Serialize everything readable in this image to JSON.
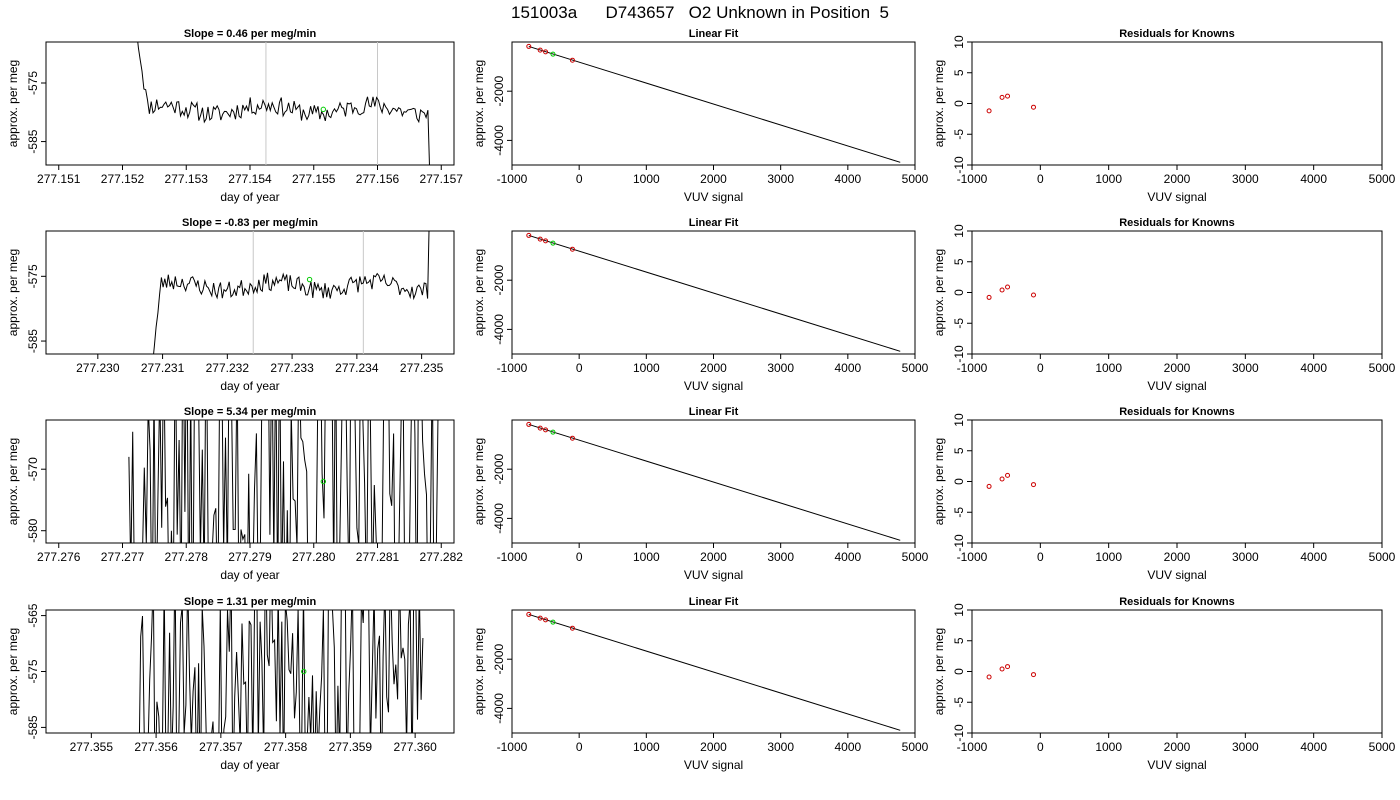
{
  "page": {
    "title": "151003a      D743657   O2 Unknown in Position  5"
  },
  "colors": {
    "trace": "#000000",
    "known_point": "#cc0000",
    "unknown_point": "#00cc00",
    "vline": "#c8c8c8",
    "fit_line": "#000000"
  },
  "chart_data": [
    {
      "type": "line",
      "row": 1,
      "panel": "timeseries",
      "title": "Slope =  0.46  per meg/min",
      "xlabel": "day of year",
      "ylabel": "approx. per meg",
      "xlim": [
        277.1508,
        277.1572
      ],
      "ylim": [
        -589,
        -568
      ],
      "xticks": [
        277.151,
        277.152,
        277.153,
        277.154,
        277.155,
        277.156,
        277.157
      ],
      "xtick_labels": [
        "277.151",
        "277.152",
        "277.153",
        "277.154",
        "277.155",
        "277.156",
        "277.157"
      ],
      "yticks": [
        -585,
        -575
      ],
      "ytick_labels": [
        "-585",
        "-575"
      ],
      "vlines": [
        277.15425,
        277.156
      ],
      "unknown_point": [
        277.15515,
        -579.5
      ],
      "trace": {
        "mode": "noisy",
        "x_start": 277.15222,
        "x_end": 277.15682,
        "level": -579.5,
        "noise": 1.6,
        "start_y": -566,
        "end_y": -591,
        "seed": 11
      }
    },
    {
      "type": "scatter",
      "row": 1,
      "panel": "fit",
      "title": "Linear Fit",
      "xlabel": "VUV signal",
      "ylabel": "approx. per meg",
      "xlim": [
        -1000,
        5000
      ],
      "ylim": [
        -5000,
        0
      ],
      "xticks": [
        -1000,
        0,
        1000,
        2000,
        3000,
        4000,
        5000
      ],
      "xtick_labels": [
        "-1000",
        "0",
        "1000",
        "2000",
        "3000",
        "4000",
        "5000"
      ],
      "yticks": [
        -4000,
        -2000
      ],
      "ytick_labels": [
        "-4000",
        "-2000"
      ],
      "fit_line": [
        [
          -750,
          -180
        ],
        [
          4780,
          -4890
        ]
      ],
      "knowns": [
        [
          -750,
          -180
        ],
        [
          -580,
          -330
        ],
        [
          -500,
          -400
        ],
        [
          -100,
          -740
        ]
      ],
      "unknown": [
        [
          -390,
          -495
        ]
      ]
    },
    {
      "type": "scatter",
      "row": 1,
      "panel": "residuals",
      "title": "Residuals for Knowns",
      "xlabel": "VUV signal",
      "ylabel": "approx. per meg",
      "xlim": [
        -1000,
        5000
      ],
      "ylim": [
        -10,
        10
      ],
      "xticks": [
        -1000,
        0,
        1000,
        2000,
        3000,
        4000,
        5000
      ],
      "xtick_labels": [
        "-1000",
        "0",
        "1000",
        "2000",
        "3000",
        "4000",
        "5000"
      ],
      "yticks": [
        -10,
        -5,
        0,
        5,
        10
      ],
      "ytick_labels": [
        "-10",
        "-5",
        "0",
        "5",
        "10"
      ],
      "points": [
        [
          -750,
          -1.2
        ],
        [
          -560,
          1.0
        ],
        [
          -480,
          1.2
        ],
        [
          -100,
          -0.6
        ]
      ]
    },
    {
      "type": "line",
      "row": 2,
      "panel": "timeseries",
      "title": "Slope =  -0.83  per meg/min",
      "xlabel": "day of year",
      "ylabel": "approx. per meg",
      "xlim": [
        277.2292,
        277.2355
      ],
      "ylim": [
        -587,
        -568
      ],
      "xticks": [
        277.23,
        277.231,
        277.232,
        277.233,
        277.234,
        277.235
      ],
      "xtick_labels": [
        "277.230",
        "277.231",
        "277.232",
        "277.233",
        "277.234",
        "277.235"
      ],
      "yticks": [
        -585,
        -575
      ],
      "ytick_labels": [
        "-585",
        "-575"
      ],
      "vlines": [
        277.2324,
        277.2341
      ],
      "unknown_point": [
        277.23327,
        -575.5
      ],
      "trace": {
        "mode": "noisy",
        "x_start": 277.23082,
        "x_end": 277.23512,
        "level": -576.5,
        "noise": 1.4,
        "start_y": -590,
        "end_y": -565,
        "seed": 23
      }
    },
    {
      "type": "scatter",
      "row": 2,
      "panel": "fit",
      "title": "Linear Fit",
      "xlabel": "VUV signal",
      "ylabel": "approx. per meg",
      "xlim": [
        -1000,
        5000
      ],
      "ylim": [
        -5000,
        0
      ],
      "xticks": [
        -1000,
        0,
        1000,
        2000,
        3000,
        4000,
        5000
      ],
      "xtick_labels": [
        "-1000",
        "0",
        "1000",
        "2000",
        "3000",
        "4000",
        "5000"
      ],
      "yticks": [
        -4000,
        -2000
      ],
      "ytick_labels": [
        "-4000",
        "-2000"
      ],
      "fit_line": [
        [
          -750,
          -180
        ],
        [
          4780,
          -4890
        ]
      ],
      "knowns": [
        [
          -750,
          -180
        ],
        [
          -580,
          -330
        ],
        [
          -500,
          -400
        ],
        [
          -100,
          -740
        ]
      ],
      "unknown": [
        [
          -390,
          -495
        ]
      ]
    },
    {
      "type": "scatter",
      "row": 2,
      "panel": "residuals",
      "title": "Residuals for Knowns",
      "xlabel": "VUV signal",
      "ylabel": "approx. per meg",
      "xlim": [
        -1000,
        5000
      ],
      "ylim": [
        -10,
        10
      ],
      "xticks": [
        -1000,
        0,
        1000,
        2000,
        3000,
        4000,
        5000
      ],
      "xtick_labels": [
        "-1000",
        "0",
        "1000",
        "2000",
        "3000",
        "4000",
        "5000"
      ],
      "yticks": [
        -10,
        -5,
        0,
        5,
        10
      ],
      "ytick_labels": [
        "-10",
        "-5",
        "0",
        "5",
        "10"
      ],
      "points": [
        [
          -750,
          -0.8
        ],
        [
          -560,
          0.4
        ],
        [
          -480,
          0.9
        ],
        [
          -100,
          -0.4
        ]
      ]
    },
    {
      "type": "line",
      "row": 3,
      "panel": "timeseries",
      "title": "Slope =  5.34  per meg/min",
      "xlabel": "day of year",
      "ylabel": "approx. per meg",
      "xlim": [
        277.2758,
        277.2822
      ],
      "ylim": [
        -582,
        -562
      ],
      "xticks": [
        277.276,
        277.277,
        277.278,
        277.279,
        277.28,
        277.281,
        277.282
      ],
      "xtick_labels": [
        "277.276",
        "277.277",
        "277.278",
        "277.279",
        "277.280",
        "277.281",
        "277.282"
      ],
      "yticks": [
        -580,
        -570
      ],
      "ytick_labels": [
        "-580",
        "-570"
      ],
      "vlines": [],
      "unknown_point": [
        277.28015,
        -572
      ],
      "trace": {
        "mode": "wild",
        "x_start": 277.2771,
        "x_end": 277.28195,
        "level": -572,
        "noise": 30,
        "start_y": -568,
        "end_y": -560,
        "seed": 37
      }
    },
    {
      "type": "scatter",
      "row": 3,
      "panel": "fit",
      "title": "Linear Fit",
      "xlabel": "VUV signal",
      "ylabel": "approx. per meg",
      "xlim": [
        -1000,
        5000
      ],
      "ylim": [
        -5000,
        0
      ],
      "xticks": [
        -1000,
        0,
        1000,
        2000,
        3000,
        4000,
        5000
      ],
      "xtick_labels": [
        "-1000",
        "0",
        "1000",
        "2000",
        "3000",
        "4000",
        "5000"
      ],
      "yticks": [
        -4000,
        -2000
      ],
      "ytick_labels": [
        "-4000",
        "-2000"
      ],
      "fit_line": [
        [
          -750,
          -180
        ],
        [
          4780,
          -4890
        ]
      ],
      "knowns": [
        [
          -750,
          -180
        ],
        [
          -580,
          -330
        ],
        [
          -500,
          -400
        ],
        [
          -100,
          -740
        ]
      ],
      "unknown": [
        [
          -390,
          -495
        ]
      ]
    },
    {
      "type": "scatter",
      "row": 3,
      "panel": "residuals",
      "title": "Residuals for Knowns",
      "xlabel": "VUV signal",
      "ylabel": "approx. per meg",
      "xlim": [
        -1000,
        5000
      ],
      "ylim": [
        -10,
        10
      ],
      "xticks": [
        -1000,
        0,
        1000,
        2000,
        3000,
        4000,
        5000
      ],
      "xtick_labels": [
        "-1000",
        "0",
        "1000",
        "2000",
        "3000",
        "4000",
        "5000"
      ],
      "yticks": [
        -10,
        -5,
        0,
        5,
        10
      ],
      "ytick_labels": [
        "-10",
        "-5",
        "0",
        "5",
        "10"
      ],
      "points": [
        [
          -750,
          -0.8
        ],
        [
          -560,
          0.4
        ],
        [
          -480,
          1.0
        ],
        [
          -100,
          -0.5
        ]
      ]
    },
    {
      "type": "line",
      "row": 4,
      "panel": "timeseries",
      "title": "Slope =  1.31  per meg/min",
      "xlabel": "day of year",
      "ylabel": "approx. per meg",
      "xlim": [
        277.3543,
        277.3606
      ],
      "ylim": [
        -586,
        -564
      ],
      "xticks": [
        277.355,
        277.356,
        277.357,
        277.358,
        277.359,
        277.36
      ],
      "xtick_labels": [
        "277.355",
        "277.356",
        "277.357",
        "277.358",
        "277.359",
        "277.360"
      ],
      "yticks": [
        -585,
        -575,
        -565
      ],
      "ytick_labels": [
        "-585",
        "-575",
        "-565"
      ],
      "vlines": [],
      "unknown_point": [
        277.35828,
        -575
      ],
      "trace": {
        "mode": "wild",
        "x_start": 277.35565,
        "x_end": 277.36012,
        "level": -575,
        "noise": 24,
        "start_y": -588,
        "end_y": -569,
        "seed": 53
      }
    },
    {
      "type": "scatter",
      "row": 4,
      "panel": "fit",
      "title": "Linear Fit",
      "xlabel": "VUV signal",
      "ylabel": "approx. per meg",
      "xlim": [
        -1000,
        5000
      ],
      "ylim": [
        -5000,
        0
      ],
      "xticks": [
        -1000,
        0,
        1000,
        2000,
        3000,
        4000,
        5000
      ],
      "xtick_labels": [
        "-1000",
        "0",
        "1000",
        "2000",
        "3000",
        "4000",
        "5000"
      ],
      "yticks": [
        -4000,
        -2000
      ],
      "ytick_labels": [
        "-4000",
        "-2000"
      ],
      "fit_line": [
        [
          -750,
          -180
        ],
        [
          4780,
          -4890
        ]
      ],
      "knowns": [
        [
          -750,
          -180
        ],
        [
          -580,
          -330
        ],
        [
          -500,
          -400
        ],
        [
          -100,
          -740
        ]
      ],
      "unknown": [
        [
          -390,
          -495
        ]
      ]
    },
    {
      "type": "scatter",
      "row": 4,
      "panel": "residuals",
      "title": "Residuals for Knowns",
      "xlabel": "VUV signal",
      "ylabel": "approx. per meg",
      "xlim": [
        -1000,
        5000
      ],
      "ylim": [
        -10,
        10
      ],
      "xticks": [
        -1000,
        0,
        1000,
        2000,
        3000,
        4000,
        5000
      ],
      "xtick_labels": [
        "-1000",
        "0",
        "1000",
        "2000",
        "3000",
        "4000",
        "5000"
      ],
      "yticks": [
        -10,
        -5,
        0,
        5,
        10
      ],
      "ytick_labels": [
        "-10",
        "-5",
        "0",
        "5",
        "10"
      ],
      "points": [
        [
          -750,
          -0.9
        ],
        [
          -560,
          0.4
        ],
        [
          -480,
          0.8
        ],
        [
          -100,
          -0.5
        ]
      ]
    }
  ]
}
